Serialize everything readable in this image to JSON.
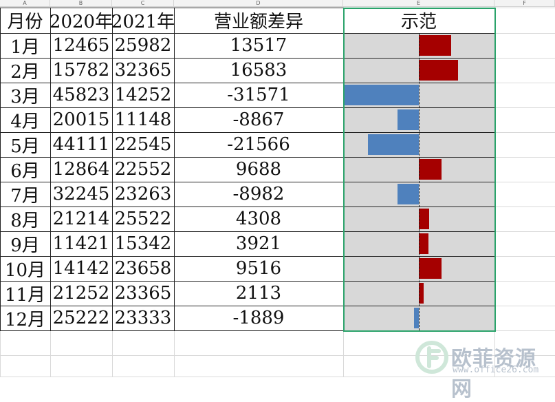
{
  "columns": [
    "A",
    "B",
    "C",
    "D",
    "E",
    "F"
  ],
  "headers": {
    "month": "月份",
    "y2020": "2020年",
    "y2021": "2021年",
    "diff": "营业额差异",
    "demo": "示范"
  },
  "rows": [
    {
      "month": "1月",
      "y2020": "12465",
      "y2021": "25982",
      "diff": "13517",
      "value": 13517
    },
    {
      "month": "2月",
      "y2020": "15782",
      "y2021": "32365",
      "diff": "16583",
      "value": 16583
    },
    {
      "month": "3月",
      "y2020": "45823",
      "y2021": "14252",
      "diff": "-31571",
      "value": -31571
    },
    {
      "month": "4月",
      "y2020": "20015",
      "y2021": "11148",
      "diff": "-8867",
      "value": -8867
    },
    {
      "month": "5月",
      "y2020": "44111",
      "y2021": "22545",
      "diff": "-21566",
      "value": -21566
    },
    {
      "month": "6月",
      "y2020": "12864",
      "y2021": "22552",
      "diff": "9688",
      "value": 9688
    },
    {
      "month": "7月",
      "y2020": "32245",
      "y2021": "23263",
      "diff": "-8982",
      "value": -8982
    },
    {
      "month": "8月",
      "y2020": "21214",
      "y2021": "25522",
      "diff": "4308",
      "value": 4308
    },
    {
      "month": "9月",
      "y2020": "11421",
      "y2021": "15342",
      "diff": "3921",
      "value": 3921
    },
    {
      "month": "10月",
      "y2020": "14142",
      "y2021": "23658",
      "diff": "9516",
      "value": 9516
    },
    {
      "month": "11月",
      "y2020": "21252",
      "y2021": "23365",
      "diff": "2113",
      "value": 2113
    },
    {
      "month": "12月",
      "y2020": "25222",
      "y2021": "23333",
      "diff": "-1889",
      "value": -1889
    }
  ],
  "data_bars": {
    "positive_color": "#a50000",
    "negative_color": "#4f81bd",
    "background_color": "#d8d8d8"
  },
  "selection_color": "#2ba36b",
  "watermark": {
    "title": "欧菲资源网",
    "url": "www.office26.com"
  }
}
